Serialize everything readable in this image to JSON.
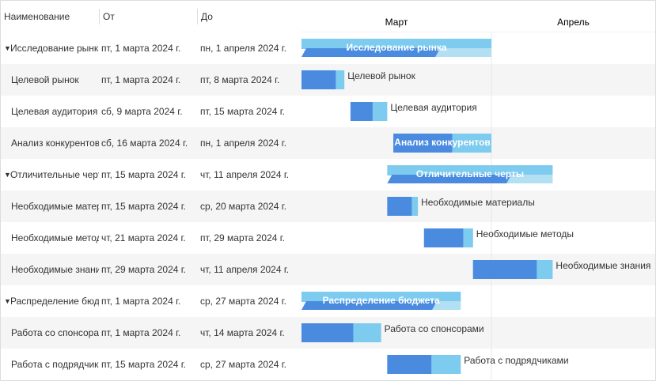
{
  "columns": [
    "Наименование",
    "От",
    "До"
  ],
  "months": [
    "Март",
    "Апрель"
  ],
  "tasks": [
    {
      "name": "Исследование рынка",
      "start": "пт, 1 марта 2024 г.",
      "end": "пн, 1 апреля 2024 г.",
      "progress": 73,
      "summary": true,
      "label_inside": true
    },
    {
      "name": "Целевой рынок",
      "start": "пт, 1 марта 2024 г.",
      "end": "пт, 8 марта 2024 г.",
      "progress": 80,
      "summary": false,
      "label_inside": false
    },
    {
      "name": "Целевая аудитория",
      "start": "сб, 9 марта 2024 г.",
      "end": "пт, 15 марта 2024 г.",
      "progress": 60,
      "summary": false,
      "label_inside": false
    },
    {
      "name": "Анализ конкурентов",
      "start": "сб, 16 марта 2024 г.",
      "end": "пн, 1 апреля 2024 г.",
      "progress": 60,
      "summary": false,
      "label_inside": true
    },
    {
      "name": "Отличительные черты",
      "start": "пт, 15 марта 2024 г.",
      "end": "чт, 11 апреля 2024 г.",
      "progress": 75,
      "summary": true,
      "label_inside": true
    },
    {
      "name": "Необходимые материалы",
      "start": "пт, 15 марта 2024 г.",
      "end": "ср, 20 марта 2024 г.",
      "progress": 80,
      "summary": false,
      "label_inside": false
    },
    {
      "name": "Необходимые методы",
      "start": "чт, 21 марта 2024 г.",
      "end": "пт, 29 марта 2024 г.",
      "progress": 80,
      "summary": false,
      "label_inside": false
    },
    {
      "name": "Необходимые знания",
      "start": "пт, 29 марта 2024 г.",
      "end": "чт, 11 апреля 2024 г.",
      "progress": 80,
      "summary": false,
      "label_inside": false
    },
    {
      "name": "Распределение бюджета",
      "start": "пт, 1 марта 2024 г.",
      "end": "ср, 27 марта 2024 г.",
      "progress": 85,
      "summary": true,
      "label_inside": true
    },
    {
      "name": "Работа со спонсорами",
      "start": "пт, 1 марта 2024 г.",
      "end": "чт, 14 марта 2024 г.",
      "progress": 65,
      "summary": false,
      "label_inside": false
    },
    {
      "name": "Работа с подрядчиками",
      "start": "пт, 15 марта 2024 г.",
      "end": "ср, 27 марта 2024 г.",
      "progress": 60,
      "summary": false,
      "label_inside": false
    }
  ]
}
